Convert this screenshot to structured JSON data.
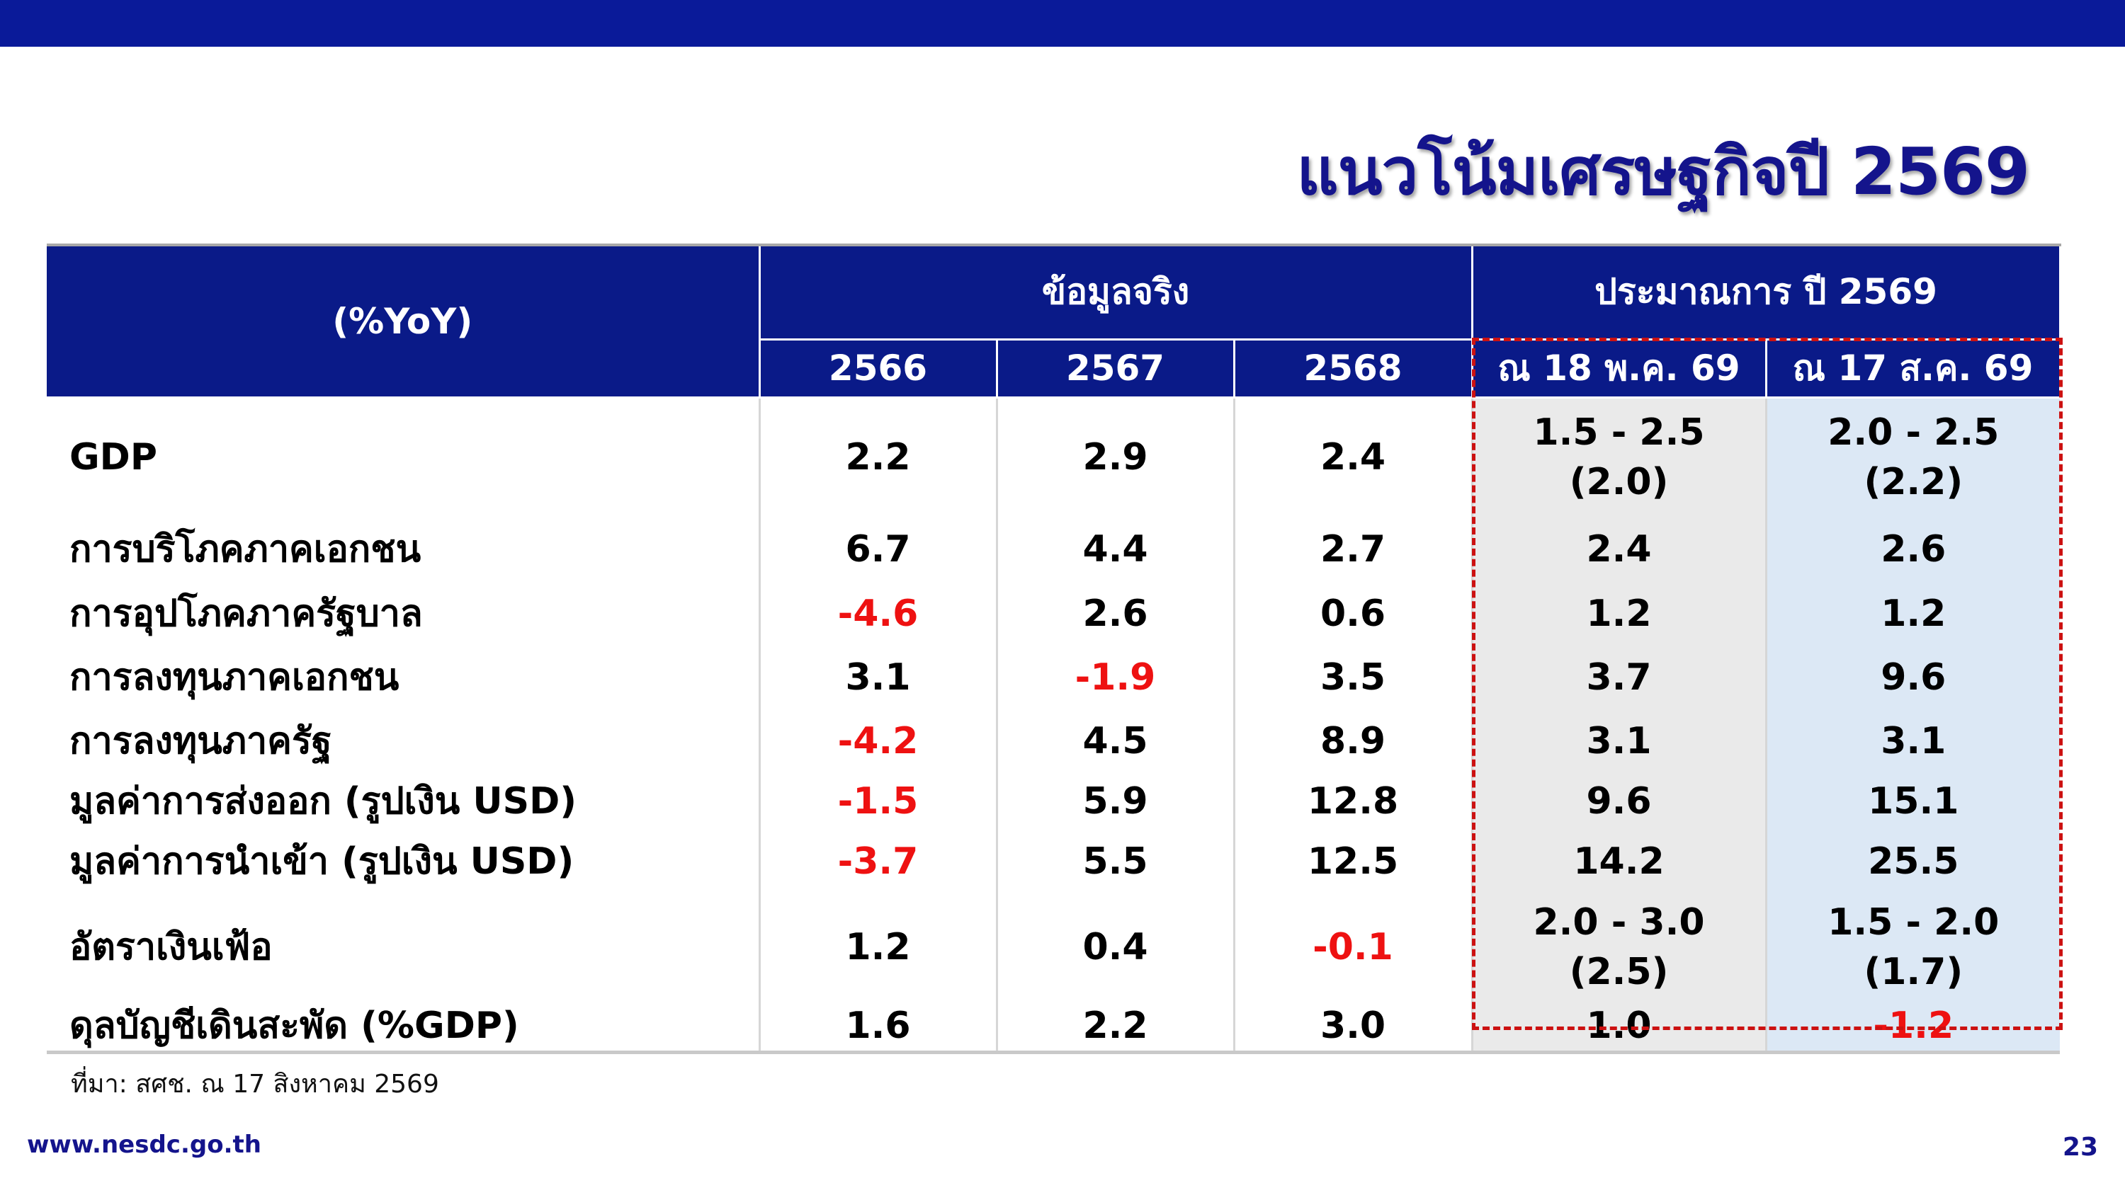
{
  "title": "แนวโน้มเศรษฐกิจปี 2569",
  "table": {
    "corner": "(%YoY)",
    "group_actual": "ข้อมูลจริง",
    "group_forecast": "ประมาณการ ปี 2569",
    "years": [
      "2566",
      "2567",
      "2568"
    ],
    "forecasts": [
      "ณ 18 พ.ค. 69",
      "ณ 17 ส.ค. 69"
    ],
    "rows": [
      {
        "label": "GDP",
        "v2566": "2.2",
        "v2567": "2.9",
        "v2568": "2.4",
        "f_may": "1.5 - 2.5",
        "f_may_sub": "(2.0)",
        "f_aug": "2.0 - 2.5",
        "f_aug_sub": "(2.2)"
      },
      {
        "label": "การบริโภคภาคเอกชน",
        "v2566": "6.7",
        "v2567": "4.4",
        "v2568": "2.7",
        "f_may": "2.4",
        "f_aug": "2.6"
      },
      {
        "label": "การอุปโภคภาครัฐบาล",
        "v2566": "-4.6",
        "v2567": "2.6",
        "v2568": "0.6",
        "f_may": "1.2",
        "f_aug": "1.2"
      },
      {
        "label": "การลงทุนภาคเอกชน",
        "v2566": "3.1",
        "v2567": "-1.9",
        "v2568": "3.5",
        "f_may": "3.7",
        "f_aug": "9.6"
      },
      {
        "label": "การลงทุนภาครัฐ",
        "v2566": "-4.2",
        "v2567": "4.5",
        "v2568": "8.9",
        "f_may": "3.1",
        "f_aug": "3.1"
      },
      {
        "label": "มูลค่าการส่งออก (รูปเงิน USD)",
        "v2566": "-1.5",
        "v2567": "5.9",
        "v2568": "12.8",
        "f_may": "9.6",
        "f_aug": "15.1"
      },
      {
        "label": "มูลค่าการนำเข้า (รูปเงิน USD)",
        "v2566": "-3.7",
        "v2567": "5.5",
        "v2568": "12.5",
        "f_may": "14.2",
        "f_aug": "25.5"
      },
      {
        "label": "อัตราเงินเฟ้อ",
        "v2566": "1.2",
        "v2567": "0.4",
        "v2568": "-0.1",
        "f_may": "2.0 - 3.0",
        "f_may_sub": "(2.5)",
        "f_aug": "1.5 - 2.0",
        "f_aug_sub": "(1.7)"
      },
      {
        "label": "ดุลบัญชีเดินสะพัด (%GDP)",
        "v2566": "1.6",
        "v2567": "2.2",
        "v2568": "3.0",
        "f_may": "1.0",
        "f_aug": "-1.2"
      }
    ]
  },
  "source": "ที่มา: สศช. ณ 17 สิงหาคม 2569",
  "website": "www.nesdc.go.th",
  "page_number": "23",
  "colors": {
    "header_bg": "#0a1a88",
    "top_bar": "#0a1a99",
    "title": "#14148c",
    "negative": "#ee1111",
    "forecast_may_bg": "#eaeaea",
    "forecast_aug_bg": "#dce8f5",
    "frame": "#cc1111"
  }
}
